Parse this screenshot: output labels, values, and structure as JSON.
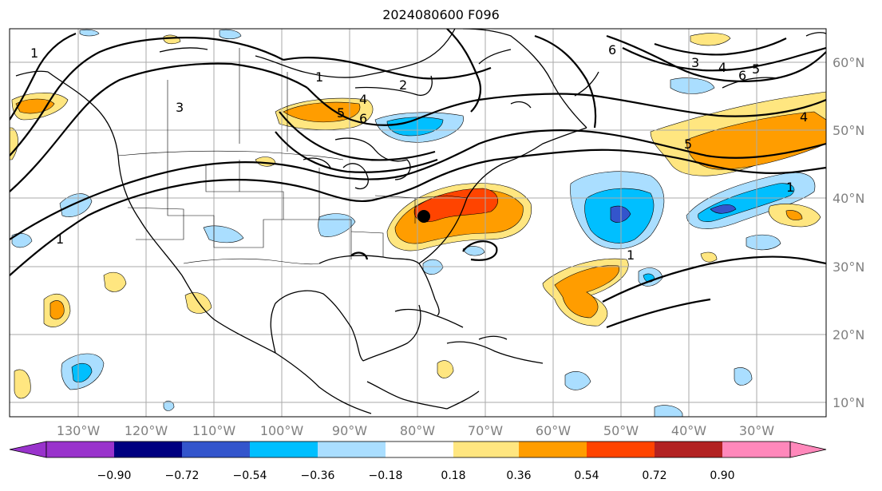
{
  "title": "2024080600 F096",
  "map": {
    "lon_range": [
      -140,
      -17
    ],
    "lat_range": [
      8,
      65
    ],
    "lon_ticks": [
      {
        "value": -130,
        "label": "130°W"
      },
      {
        "value": -120,
        "label": "120°W"
      },
      {
        "value": -110,
        "label": "110°W"
      },
      {
        "value": -100,
        "label": "100°W"
      },
      {
        "value": -90,
        "label": "90°W"
      },
      {
        "value": -80,
        "label": "80°W"
      },
      {
        "value": -70,
        "label": "70°W"
      },
      {
        "value": -60,
        "label": "60°W"
      },
      {
        "value": -50,
        "label": "50°W"
      },
      {
        "value": -40,
        "label": "40°W"
      },
      {
        "value": -30,
        "label": "30°W"
      }
    ],
    "lat_ticks": [
      {
        "value": 60,
        "label": "60°N"
      },
      {
        "value": 50,
        "label": "50°N"
      },
      {
        "value": 40,
        "label": "40°N"
      },
      {
        "value": 30,
        "label": "30°N"
      },
      {
        "value": 20,
        "label": "20°N"
      },
      {
        "value": 10,
        "label": "10°N"
      }
    ],
    "marker": {
      "lon": -79,
      "lat": 37.2,
      "color": "#000000"
    },
    "contour_labels": [
      "1",
      "2",
      "3",
      "4",
      "5",
      "6"
    ]
  },
  "colorbar": {
    "colors": [
      "#9933cc",
      "#000080",
      "#3355cc",
      "#00bfff",
      "#aadeff",
      "#ffffff",
      "#ffe680",
      "#ff9d00",
      "#ff4400",
      "#b22222",
      "#ff88bb"
    ],
    "under_color": "#9933cc",
    "over_color": "#ff88bb",
    "tick_labels": [
      "−0.90",
      "−0.72",
      "−0.54",
      "−0.36",
      "−0.18",
      "0.18",
      "0.36",
      "0.54",
      "0.72",
      "0.90"
    ]
  }
}
